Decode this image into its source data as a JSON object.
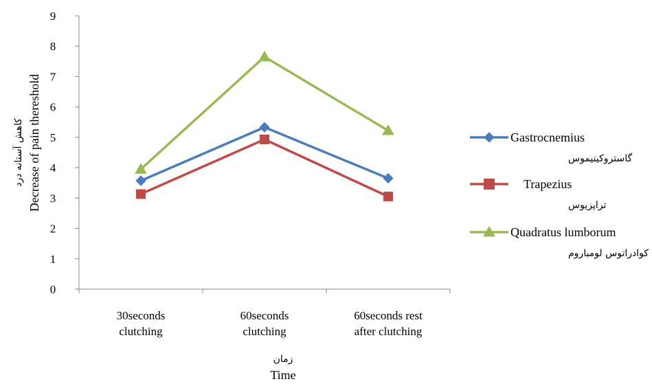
{
  "chart_data": {
    "type": "line",
    "categories": [
      [
        "30seconds",
        "clutching"
      ],
      [
        "60seconds",
        "clutching"
      ],
      [
        "60seconds rest",
        "after clutching"
      ]
    ],
    "series": [
      {
        "name": "Gastrocnemius",
        "name_fa": "گاستروکینیموس",
        "values": [
          3.57,
          5.33,
          3.65
        ],
        "color": "#4a7ebb",
        "marker": "diamond"
      },
      {
        "name": "Trapezius",
        "name_fa": "تراپزیوس",
        "values": [
          3.13,
          4.93,
          3.05
        ],
        "color": "#be4b48",
        "marker": "square"
      },
      {
        "name": "Quadratus lumborum",
        "name_fa": "کوادراتوس لومباروم",
        "values": [
          3.95,
          7.65,
          5.22
        ],
        "color": "#98b954",
        "marker": "triangle"
      }
    ],
    "ylabel": "Decrease of pain thereshold",
    "ylabel_fa": "کاهش آستانه درد",
    "xlabel": "Time",
    "xlabel_fa": "زمان",
    "ylim": [
      0,
      9
    ],
    "yticks": [
      0,
      1,
      2,
      3,
      4,
      5,
      6,
      7,
      8,
      9
    ],
    "grid": false,
    "legend_position": "right"
  }
}
